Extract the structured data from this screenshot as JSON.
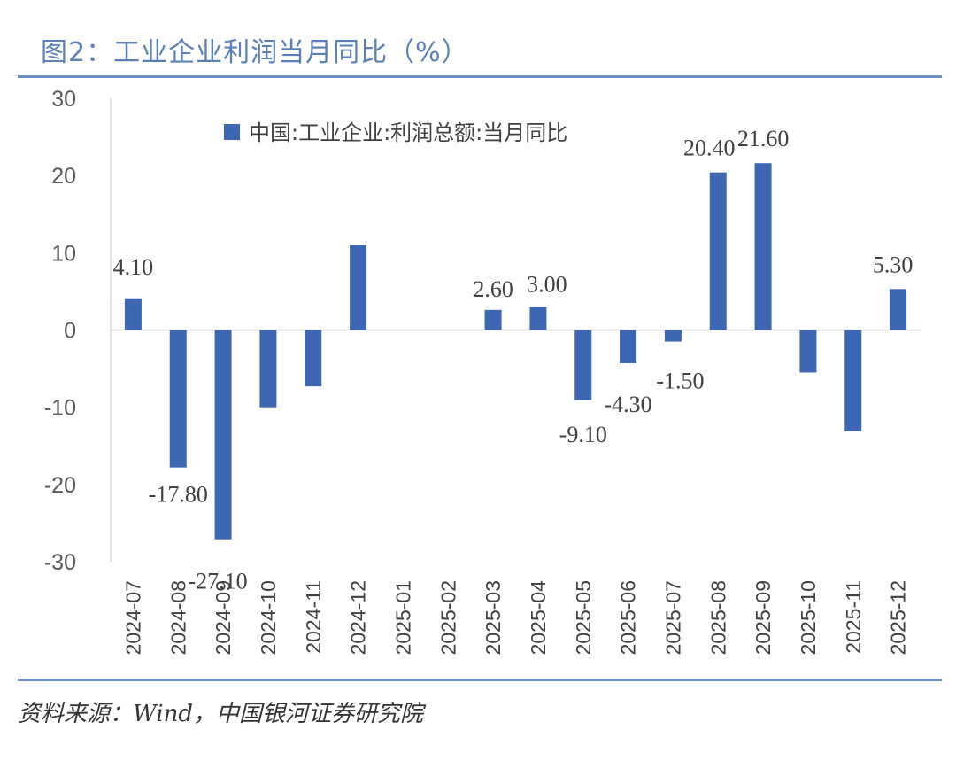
{
  "title": "图2：工业企业利润当月同比（%）",
  "source": "资料来源：Wind，中国银河证券研究院",
  "colors": {
    "bar": "#3d67b3",
    "accent": "#6d8fc4",
    "axis": "#d9d9d9"
  },
  "chart_data": {
    "type": "bar",
    "title": "图2：工业企业利润当月同比（%）",
    "xlabel": "",
    "ylabel": "",
    "ylim": [
      -30,
      30
    ],
    "yticks": [
      30,
      20,
      10,
      0,
      -10,
      -20,
      -30
    ],
    "grid": false,
    "legend_position": "top",
    "categories": [
      "2024-07",
      "2024-08",
      "2024-09",
      "2024-10",
      "2024-11",
      "2024-12",
      "2025-01",
      "2025-02",
      "2025-03",
      "2025-04",
      "2025-05",
      "2025-06",
      "2025-07",
      "2025-08",
      "2025-09",
      "2025-10",
      "2025-11",
      "2025-12"
    ],
    "series": [
      {
        "name": "中国:工业企业:利润总额:当月同比",
        "values": [
          4.1,
          -17.8,
          -27.1,
          -10.0,
          -7.3,
          11.0,
          null,
          null,
          2.6,
          3.0,
          -9.1,
          -4.3,
          -1.5,
          20.4,
          21.6,
          -5.5,
          -13.1,
          5.3
        ],
        "labels": [
          "4.10",
          "-17.80",
          "-27.10",
          null,
          null,
          null,
          null,
          null,
          "2.60",
          "3.00",
          "-9.10",
          "-4.30",
          "-1.50",
          "20.40",
          "21.60",
          null,
          null,
          "5.30"
        ]
      }
    ]
  }
}
